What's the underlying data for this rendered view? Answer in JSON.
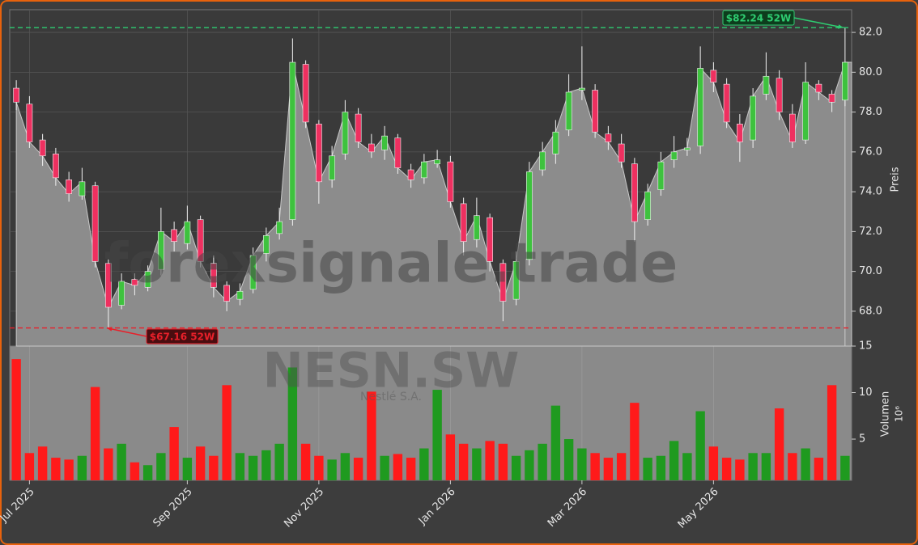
{
  "chart_data": {
    "type": "candlestick",
    "ticker_watermark": "NESN.SW",
    "company_watermark": "Nestlé S.A.",
    "site_watermark": "forexsignale.trade",
    "y_label": "Preis",
    "categories": [
      null,
      "Jul 2025",
      null,
      null,
      null,
      null,
      null,
      null,
      null,
      null,
      null,
      null,
      null,
      "Sep 2025",
      null,
      null,
      null,
      null,
      null,
      null,
      null,
      null,
      null,
      "Nov 2025",
      null,
      null,
      null,
      null,
      null,
      null,
      null,
      null,
      null,
      "Jan 2026",
      null,
      null,
      null,
      null,
      null,
      null,
      null,
      null,
      null,
      "Mar 2026",
      null,
      null,
      null,
      null,
      null,
      null,
      null,
      null,
      null,
      "May 2026",
      null,
      null,
      null,
      null,
      null,
      null,
      null,
      null,
      null,
      null
    ],
    "open": [
      79.2,
      78.4,
      76.6,
      75.9,
      74.6,
      73.8,
      74.3,
      70.4,
      68.3,
      69.6,
      69.2,
      70.1,
      72.1,
      71.4,
      72.6,
      70.4,
      69.3,
      68.6,
      69.1,
      70.9,
      71.9,
      72.6,
      80.4,
      77.4,
      74.6,
      75.9,
      77.9,
      76.4,
      76.1,
      76.7,
      75.1,
      74.7,
      75.4,
      75.5,
      73.4,
      71.6,
      72.7,
      70.4,
      68.6,
      70.6,
      75.1,
      75.9,
      77.1,
      79.1,
      79.1,
      76.9,
      76.4,
      75.4,
      72.6,
      74.1,
      75.6,
      76.1,
      76.3,
      80.1,
      79.4,
      77.4,
      76.6,
      78.9,
      79.7,
      77.9,
      76.6,
      79.4,
      78.9,
      78.6
    ],
    "high": [
      79.6,
      78.8,
      76.9,
      76.2,
      75.0,
      75.2,
      74.5,
      70.6,
      69.9,
      69.9,
      70.3,
      73.2,
      72.5,
      73.3,
      72.8,
      70.8,
      69.5,
      69.4,
      71.2,
      72.2,
      73.2,
      81.7,
      80.6,
      77.6,
      76.3,
      78.6,
      78.2,
      76.9,
      77.3,
      76.9,
      75.4,
      75.9,
      76.1,
      75.8,
      73.7,
      73.7,
      72.9,
      70.6,
      71.0,
      75.5,
      76.5,
      77.6,
      79.9,
      81.3,
      79.4,
      77.3,
      76.9,
      75.7,
      74.4,
      76.0,
      76.8,
      76.7,
      81.3,
      80.5,
      79.7,
      77.9,
      79.2,
      81.0,
      80.1,
      78.4,
      80.5,
      79.6,
      79.1,
      82.24
    ],
    "low": [
      78.1,
      76.2,
      75.3,
      74.3,
      73.5,
      73.6,
      70.2,
      67.16,
      68.1,
      68.8,
      69.0,
      69.8,
      71.0,
      71.1,
      70.2,
      68.7,
      68.0,
      68.3,
      68.9,
      70.5,
      71.6,
      72.3,
      77.2,
      73.4,
      74.2,
      75.6,
      76.2,
      75.7,
      75.6,
      74.9,
      74.2,
      74.4,
      75.2,
      73.2,
      70.8,
      71.2,
      70.0,
      67.5,
      68.3,
      70.3,
      74.8,
      75.4,
      76.8,
      78.6,
      76.7,
      76.1,
      75.2,
      71.5,
      72.3,
      73.8,
      75.2,
      75.8,
      75.9,
      79.0,
      77.2,
      75.5,
      76.2,
      78.6,
      77.6,
      76.2,
      76.4,
      78.6,
      78.0,
      78.3
    ],
    "close": [
      78.5,
      76.5,
      75.8,
      74.7,
      73.9,
      74.5,
      70.5,
      68.2,
      69.5,
      69.3,
      70.0,
      72.0,
      71.5,
      72.5,
      70.5,
      69.2,
      68.5,
      69.0,
      70.8,
      71.8,
      72.5,
      80.5,
      77.5,
      74.5,
      75.8,
      78.0,
      76.5,
      76.0,
      76.8,
      75.2,
      74.6,
      75.5,
      75.6,
      73.5,
      71.5,
      72.8,
      70.5,
      68.5,
      70.5,
      75.0,
      76.0,
      77.0,
      79.0,
      79.2,
      77.0,
      76.5,
      75.5,
      72.5,
      74.0,
      75.5,
      76.0,
      76.2,
      80.2,
      79.5,
      77.5,
      76.5,
      78.8,
      79.8,
      78.0,
      76.5,
      79.5,
      79.0,
      78.5,
      80.5
    ],
    "up_color": "#3ec23e",
    "down_color": "#ee3060",
    "ylim": [
      66.25,
      83.14
    ],
    "yticks": [
      {
        "value": 68,
        "label": "68.0"
      },
      {
        "value": 70,
        "label": "70.0"
      },
      {
        "value": 72,
        "label": "72.0"
      },
      {
        "value": 74,
        "label": "74.0"
      },
      {
        "value": 76,
        "label": "76.0"
      },
      {
        "value": 78,
        "label": "78.0"
      },
      {
        "value": 80,
        "label": "80.0"
      },
      {
        "value": 82,
        "label": "82.0"
      }
    ],
    "grid": true,
    "annotations": [
      {
        "text": "$82.24 52W",
        "value": 82.24,
        "color": "#2ecc71"
      },
      {
        "text": "$67.16 52W",
        "value": 67.16,
        "color": "#e8202a"
      }
    ],
    "volume": {
      "label": "Volumen",
      "exponent": "10⁶",
      "values": [
        13.6,
        3.5,
        4.2,
        3.0,
        2.8,
        3.2,
        10.6,
        4.0,
        4.5,
        2.5,
        2.2,
        3.5,
        6.3,
        3.0,
        4.2,
        3.2,
        10.8,
        3.5,
        3.2,
        3.8,
        4.5,
        12.7,
        4.5,
        3.2,
        2.8,
        3.5,
        3.0,
        10.1,
        3.2,
        3.4,
        3.0,
        4.0,
        10.3,
        5.5,
        4.5,
        4.0,
        4.8,
        4.5,
        3.2,
        3.8,
        4.5,
        8.6,
        5.0,
        4.0,
        3.5,
        3.0,
        3.5,
        8.9,
        3.0,
        3.2,
        4.8,
        3.5,
        8.0,
        4.2,
        3.0,
        2.8,
        3.5,
        3.5,
        8.3,
        3.5,
        4.0,
        3.0,
        10.8,
        3.2
      ],
      "up_color": "#1f9a1f",
      "down_color": "#ff1a1a",
      "ylim": [
        0.57,
        15
      ],
      "yticks": [
        5,
        10,
        15
      ]
    }
  }
}
